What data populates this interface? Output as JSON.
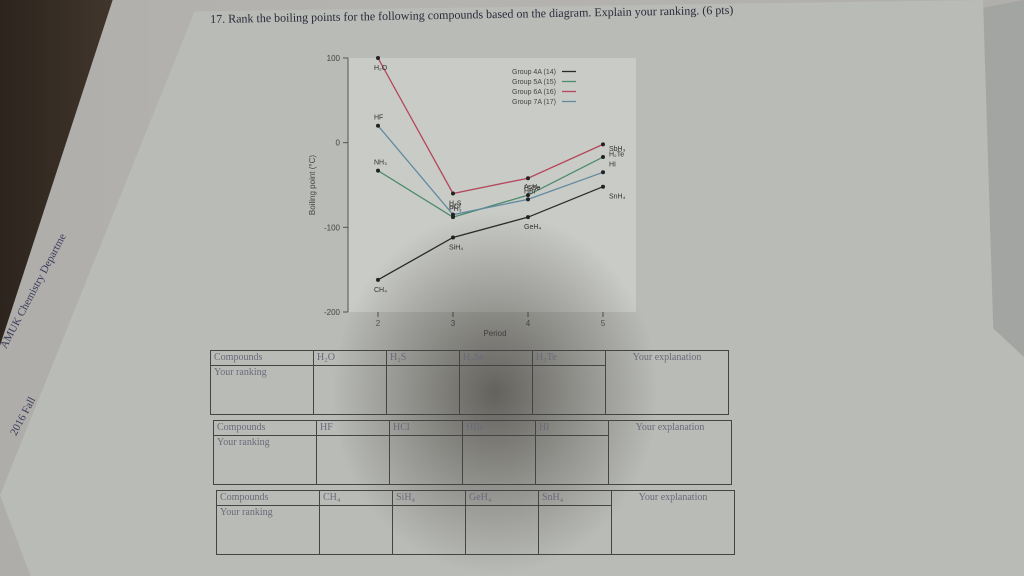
{
  "question": "17. Rank the boiling points for the following compounds based on the diagram. Explain your ranking. (6 pts)",
  "side_label": {
    "line1": "AMUK Chemistry Departme",
    "line2": "2016 Fall"
  },
  "chart_data": {
    "type": "line",
    "xlabel": "Period",
    "ylabel": "Boiling point (°C)",
    "x_ticks": [
      2,
      3,
      4,
      5
    ],
    "y_ticks": [
      100,
      0,
      -100,
      -200
    ],
    "ylim": [
      -200,
      100
    ],
    "legend": [
      "Group 4A (14)",
      "Group 5A (15)",
      "Group 6A (16)",
      "Group 7A (17)"
    ],
    "legend_position": "top-right",
    "series": [
      {
        "name": "Group 4A (14)",
        "color": "#2b2b2b",
        "labels": [
          "CH₄",
          "SiH₄",
          "GeH₄",
          "SnH₄"
        ],
        "x": [
          2,
          3,
          4,
          5
        ],
        "y": [
          -162,
          -112,
          -88,
          -52
        ]
      },
      {
        "name": "Group 5A (15)",
        "color": "#4e8a6e",
        "labels": [
          "NH₃",
          "PH₃",
          "AsH₃",
          "SbH₃"
        ],
        "x": [
          2,
          3,
          4,
          5
        ],
        "y": [
          -33,
          -88,
          -62,
          -17
        ]
      },
      {
        "name": "Group 6A (16)",
        "color": "#b4475a",
        "labels": [
          "H₂O",
          "H₂S",
          "H₂Se",
          "H₂Te"
        ],
        "x": [
          2,
          3,
          4,
          5
        ],
        "y": [
          100,
          -60,
          -42,
          -2
        ]
      },
      {
        "name": "Group 7A (17)",
        "color": "#5f8aa0",
        "labels": [
          "HF",
          "HCl",
          "HBr",
          "HI"
        ],
        "x": [
          2,
          3,
          4,
          5
        ],
        "y": [
          20,
          -85,
          -67,
          -35
        ]
      }
    ]
  },
  "tables": [
    {
      "header": "Compounds",
      "ranking": "Your ranking",
      "compounds": [
        "H₂O",
        "H₂S",
        "H₂Se",
        "H₂Te"
      ],
      "explanation": "Your explanation"
    },
    {
      "header": "Compounds",
      "ranking": "Your ranking",
      "compounds": [
        "HF",
        "HCl",
        "HBr",
        "HI"
      ],
      "explanation": "Your explanation"
    },
    {
      "header": "Compounds",
      "ranking": "Your ranking",
      "compounds": [
        "CH₄",
        "SiH₄",
        "GeH₄",
        "SnH₄"
      ],
      "explanation": "Your explanation"
    }
  ]
}
